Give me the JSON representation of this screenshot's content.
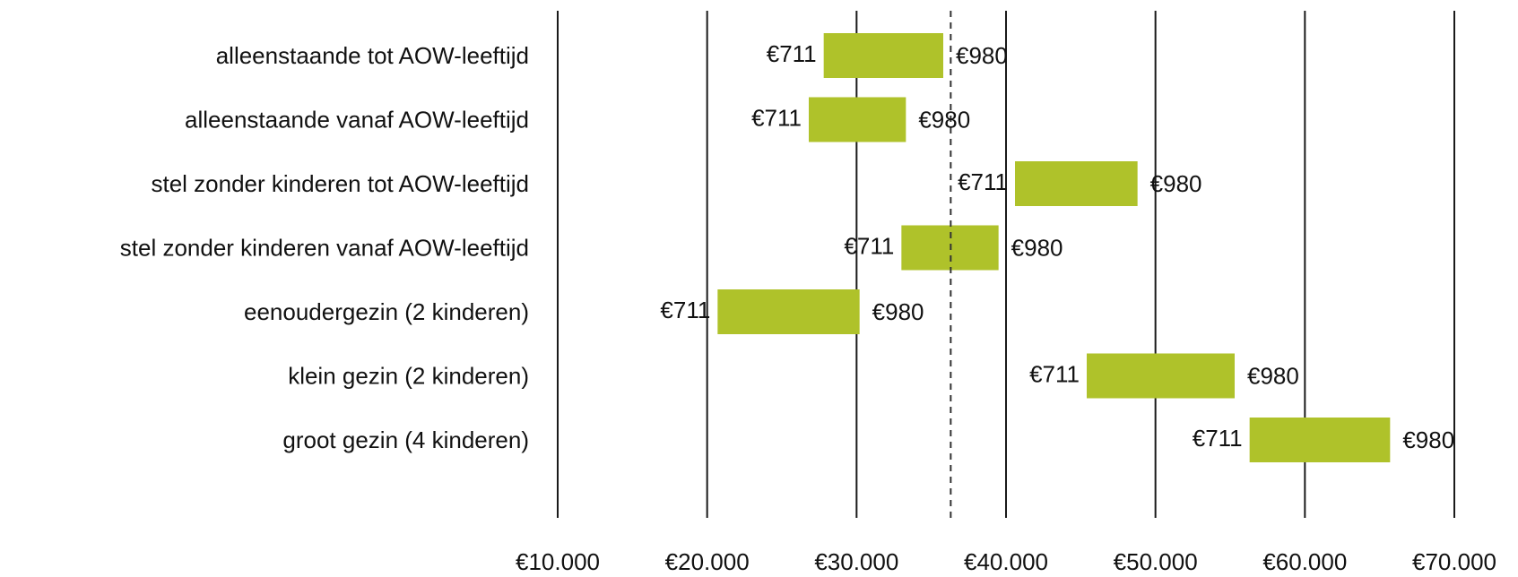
{
  "chart_data": {
    "type": "bar",
    "subtype": "floating-range-horizontal",
    "title": "",
    "xlabel": "",
    "ylabel": "",
    "xlim": [
      10000,
      70000
    ],
    "grid": "vertical",
    "legend": "none",
    "bar_color": "#afc22a",
    "reference_line": {
      "x": 36300,
      "style": "dashed"
    },
    "x_ticks": [
      10000,
      20000,
      30000,
      40000,
      50000,
      60000,
      70000
    ],
    "x_tick_labels": [
      "€10.000",
      "€20.000",
      "€30.000",
      "€40.000",
      "€50.000",
      "€60.000",
      "€70.000"
    ],
    "categories": [
      "alleenstaande tot AOW-leeftijd",
      "alleenstaande vanaf AOW-leeftijd",
      "stel zonder kinderen tot AOW-leeftijd",
      "stel zonder kinderen vanaf AOW-leeftijd",
      "eenoudergezin (2 kinderen)",
      "klein gezin (2 kinderen)",
      "groot gezin (4 kinderen)"
    ],
    "ranges": [
      {
        "start": 27800,
        "end": 35800,
        "start_label": "€711",
        "end_label": "€980"
      },
      {
        "start": 26800,
        "end": 33300,
        "start_label": "€711",
        "end_label": "€980"
      },
      {
        "start": 40600,
        "end": 48800,
        "start_label": "€711",
        "end_label": "€980"
      },
      {
        "start": 33000,
        "end": 39500,
        "start_label": "€711",
        "end_label": "€980"
      },
      {
        "start": 20700,
        "end": 30200,
        "start_label": "€711",
        "end_label": "€980"
      },
      {
        "start": 45400,
        "end": 55300,
        "start_label": "€711",
        "end_label": "€980"
      },
      {
        "start": 56300,
        "end": 65700,
        "start_label": "€711",
        "end_label": "€980"
      }
    ]
  }
}
